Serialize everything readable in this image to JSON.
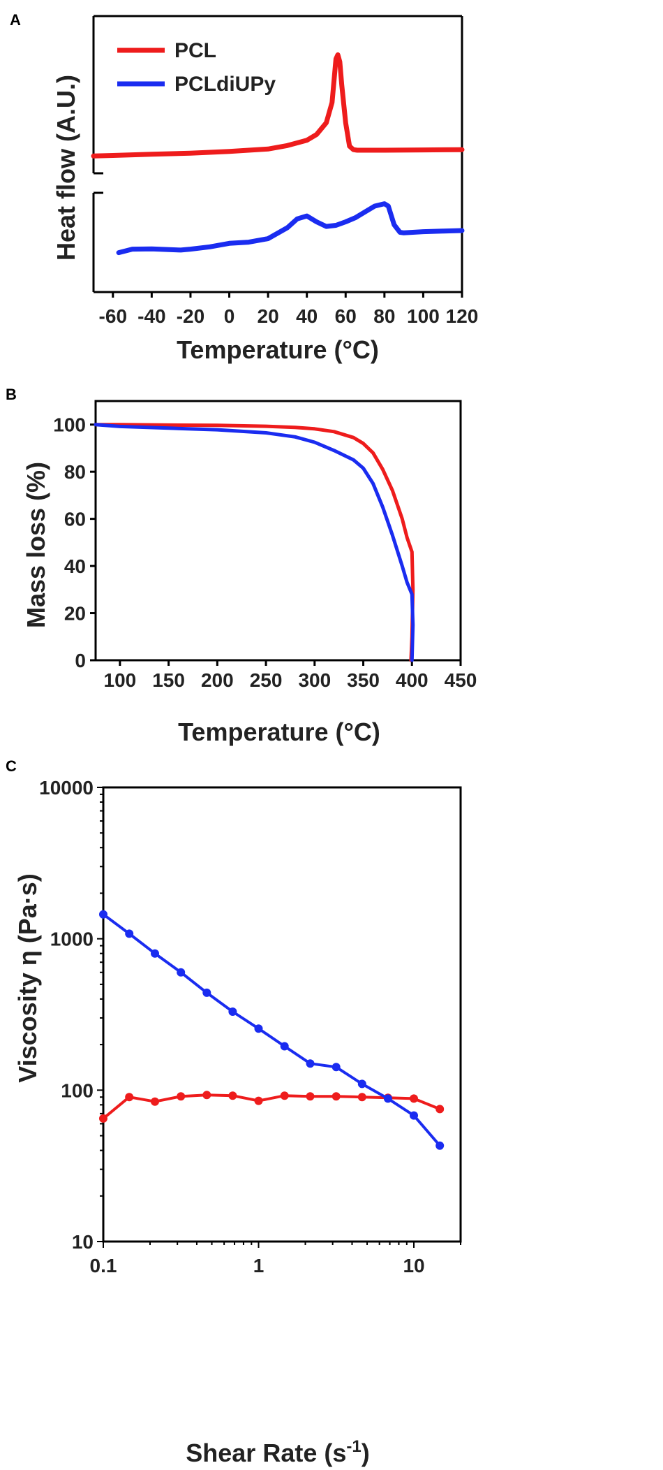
{
  "colors": {
    "pcl": "#ee1c1c",
    "pcldiupy": "#1a2cf0",
    "axis": "#000000"
  },
  "chart_data": [
    {
      "panel": "A",
      "type": "line",
      "xlabel": "Temperature (°C)",
      "ylabel": "Heat flow (A.U.)",
      "xlim": [
        -70,
        120
      ],
      "xticks": [
        -60,
        -40,
        -20,
        0,
        20,
        40,
        60,
        80,
        100,
        120
      ],
      "y_axis_broken": true,
      "grid": false,
      "legend_position": "top-left",
      "series": [
        {
          "name": "PCL",
          "color_key": "pcl",
          "x": [
            -70,
            -60,
            -40,
            -20,
            0,
            20,
            30,
            40,
            45,
            50,
            53,
            55,
            56,
            57,
            58,
            60,
            62,
            64,
            66,
            70,
            80,
            100,
            120
          ],
          "y": [
            0.88,
            0.89,
            0.91,
            0.93,
            0.96,
            1.0,
            1.06,
            1.15,
            1.25,
            1.45,
            1.8,
            2.55,
            2.62,
            2.5,
            2.1,
            1.45,
            1.05,
            0.99,
            0.98,
            0.98,
            0.98,
            0.985,
            0.99
          ]
        },
        {
          "name": "PCLdiUPy",
          "color_key": "pcldiupy",
          "x": [
            -57,
            -50,
            -40,
            -30,
            -25,
            -20,
            -10,
            0,
            10,
            20,
            30,
            35,
            40,
            45,
            50,
            55,
            60,
            65,
            70,
            75,
            80,
            82,
            85,
            88,
            90,
            100,
            110,
            120
          ],
          "y": [
            -0.78,
            -0.72,
            -0.715,
            -0.73,
            -0.735,
            -0.72,
            -0.68,
            -0.62,
            -0.6,
            -0.54,
            -0.35,
            -0.2,
            -0.15,
            -0.25,
            -0.33,
            -0.31,
            -0.25,
            -0.18,
            -0.08,
            0.02,
            0.06,
            0.02,
            -0.3,
            -0.43,
            -0.44,
            -0.42,
            -0.41,
            -0.4
          ]
        }
      ]
    },
    {
      "panel": "B",
      "type": "line",
      "xlabel": "Temperature (°C)",
      "ylabel": "Mass loss (%)",
      "xlim": [
        75,
        450
      ],
      "ylim": [
        0,
        110
      ],
      "xticks": [
        100,
        150,
        200,
        250,
        300,
        350,
        400,
        450
      ],
      "yticks": [
        0,
        20,
        40,
        60,
        80,
        100
      ],
      "grid": false,
      "series": [
        {
          "name": "PCL",
          "color_key": "pcl",
          "x": [
            75,
            100,
            150,
            200,
            250,
            280,
            300,
            320,
            340,
            350,
            360,
            370,
            380,
            390,
            395,
            400,
            401,
            400,
            399
          ],
          "y": [
            100,
            100,
            99.8,
            99.7,
            99.3,
            98.8,
            98.2,
            97.0,
            94.5,
            92.0,
            88.0,
            81.0,
            72.0,
            60.0,
            52.0,
            46.0,
            30.0,
            10.0,
            0
          ]
        },
        {
          "name": "PCLdiUPy",
          "color_key": "pcldiupy",
          "x": [
            75,
            100,
            150,
            200,
            250,
            280,
            300,
            320,
            340,
            350,
            360,
            370,
            380,
            390,
            395,
            400,
            401,
            400
          ],
          "y": [
            100,
            99.2,
            98.5,
            97.8,
            96.5,
            94.8,
            92.5,
            89.0,
            85.0,
            81.5,
            75.0,
            65.0,
            53.0,
            40.0,
            33.0,
            28.0,
            15.0,
            0
          ]
        }
      ]
    },
    {
      "panel": "C",
      "type": "line",
      "xlabel": "Shear Rate (s",
      "xlabel_sup": "-1",
      "xlabel_end": ")",
      "ylabel": "Viscosity η (Pa·s)",
      "x_scale": "log",
      "y_scale": "log",
      "xlim": [
        0.1,
        20
      ],
      "ylim": [
        10,
        10000
      ],
      "xticks": [
        "0.1",
        "1",
        "10"
      ],
      "yticks": [
        "10",
        "100",
        "1000",
        "10000"
      ],
      "grid": false,
      "series": [
        {
          "name": "PCL",
          "color_key": "pcl",
          "x": [
            0.1,
            0.147,
            0.215,
            0.316,
            0.464,
            0.681,
            1.0,
            1.47,
            2.15,
            3.16,
            4.64,
            6.81,
            10,
            14.7
          ],
          "y": [
            65,
            90,
            84,
            91,
            93,
            92,
            85,
            92,
            91,
            91,
            90,
            89,
            88,
            75
          ]
        },
        {
          "name": "PCLdiUPy",
          "color_key": "pcldiupy",
          "x": [
            0.1,
            0.147,
            0.215,
            0.316,
            0.464,
            0.681,
            1.0,
            1.47,
            2.15,
            3.16,
            4.64,
            6.81,
            10,
            14.7
          ],
          "y": [
            1450,
            1080,
            800,
            600,
            440,
            330,
            255,
            195,
            150,
            142,
            110,
            88,
            68,
            43
          ]
        }
      ]
    }
  ]
}
